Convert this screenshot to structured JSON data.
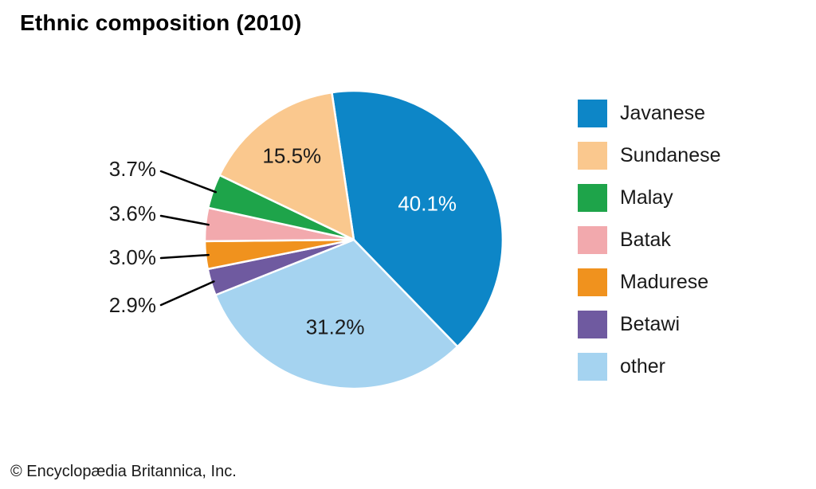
{
  "title": "Ethnic composition (2010)",
  "copyright": "© Encyclopædia Britannica, Inc.",
  "chart_data": {
    "type": "pie",
    "title": "Ethnic composition (2010)",
    "unit": "%",
    "slices": [
      {
        "label": "Javanese",
        "value": 40.1,
        "pct_label": "40.1%",
        "color": "#0d86c7",
        "pct_label_color": "#ffffff",
        "label_placement": "inside"
      },
      {
        "label": "Sundanese",
        "value": 15.5,
        "pct_label": "15.5%",
        "color": "#fac88e",
        "pct_label_color": "#1a1a1a",
        "label_placement": "inside"
      },
      {
        "label": "Malay",
        "value": 3.7,
        "pct_label": "3.7%",
        "color": "#1ea44a",
        "pct_label_color": "#1a1a1a",
        "label_placement": "outside"
      },
      {
        "label": "Batak",
        "value": 3.6,
        "pct_label": "3.6%",
        "color": "#f2a9ad",
        "pct_label_color": "#1a1a1a",
        "label_placement": "outside"
      },
      {
        "label": "Madurese",
        "value": 3.0,
        "pct_label": "3.0%",
        "color": "#f0921e",
        "pct_label_color": "#1a1a1a",
        "label_placement": "outside"
      },
      {
        "label": "Betawi",
        "value": 2.9,
        "pct_label": "2.9%",
        "color": "#6f5aa0",
        "pct_label_color": "#1a1a1a",
        "label_placement": "outside"
      },
      {
        "label": "other",
        "value": 31.2,
        "pct_label": "31.2%",
        "color": "#a5d3f0",
        "pct_label_color": "#1a1a1a",
        "label_placement": "inside"
      }
    ],
    "legend_position": "right",
    "legend_order": [
      "Javanese",
      "Sundanese",
      "Malay",
      "Batak",
      "Madurese",
      "Betawi",
      "other"
    ],
    "start_angle_deg": 98.5,
    "direction": "clockwise",
    "draw_order": [
      "Javanese",
      "other",
      "Betawi",
      "Madurese",
      "Batak",
      "Malay",
      "Sundanese"
    ]
  }
}
